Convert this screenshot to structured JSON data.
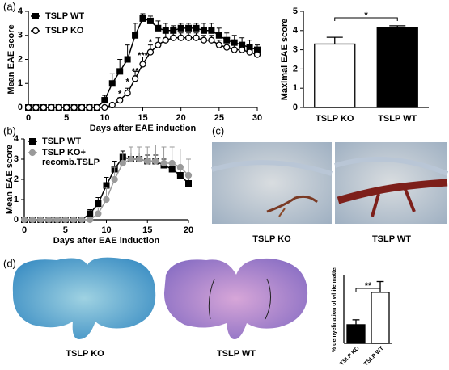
{
  "panel_labels": [
    "(a)",
    "(b)",
    "(c)",
    "(d)"
  ],
  "captions": [
    "TSLP KO",
    "TSLP WT",
    "TSLP KO",
    "TSLP WT"
  ],
  "chart_data": [
    {
      "type": "line",
      "x_label": "Days after EAE induction",
      "y_label": "Mean EAE score",
      "x": [
        0,
        1,
        2,
        3,
        4,
        5,
        6,
        7,
        8,
        9,
        10,
        11,
        12,
        13,
        14,
        15,
        16,
        17,
        18,
        19,
        20,
        21,
        22,
        23,
        24,
        25,
        26,
        27,
        28,
        29,
        30
      ],
      "xlim": [
        0,
        30
      ],
      "xticks": [
        0,
        5,
        10,
        15,
        20,
        25,
        30
      ],
      "ylim": [
        0,
        4
      ],
      "yticks": [
        0,
        1,
        2,
        3,
        4
      ],
      "annotations": [
        "*",
        "*",
        "**",
        "***",
        "*"
      ],
      "series": [
        {
          "name": "TSLP WT",
          "color": "#000000",
          "marker": "square",
          "marker_fill": "#000000",
          "values": [
            0,
            0,
            0,
            0,
            0,
            0,
            0,
            0,
            0,
            0,
            0.3,
            1.0,
            1.5,
            2.0,
            3.0,
            3.7,
            3.6,
            3.3,
            3.2,
            3.2,
            3.3,
            3.3,
            3.3,
            3.2,
            3.2,
            3.0,
            2.8,
            2.7,
            2.6,
            2.5,
            2.4
          ],
          "errors": [
            0,
            0,
            0,
            0,
            0,
            0,
            0,
            0,
            0,
            0,
            0.2,
            0.4,
            0.5,
            0.6,
            0.5,
            0.2,
            0.2,
            0.3,
            0.3,
            0.2,
            0.2,
            0.2,
            0.2,
            0.3,
            0.3,
            0.3,
            0.3,
            0.3,
            0.3,
            0.3,
            0.2
          ]
        },
        {
          "name": "TSLP KO",
          "color": "#000000",
          "marker": "circle",
          "marker_fill": "#ffffff",
          "values": [
            0,
            0,
            0,
            0,
            0,
            0,
            0,
            0,
            0,
            0,
            0,
            0.1,
            0.3,
            0.6,
            1.2,
            1.8,
            2.3,
            2.6,
            2.8,
            2.9,
            2.9,
            2.9,
            2.9,
            2.8,
            2.8,
            2.6,
            2.5,
            2.4,
            2.4,
            2.3,
            2.2
          ],
          "errors": [
            0,
            0,
            0,
            0,
            0,
            0,
            0,
            0,
            0,
            0,
            0,
            0,
            0.1,
            0.2,
            0.3,
            0.3,
            0.3,
            0.3,
            0.3,
            0.2,
            0.2,
            0.2,
            0.2,
            0.2,
            0.2,
            0.2,
            0.2,
            0.2,
            0.2,
            0.2,
            0.2
          ]
        }
      ]
    },
    {
      "type": "bar",
      "y_label": "Maximal EAE score",
      "categories": [
        "TSLP KO",
        "TSLP WT"
      ],
      "values": [
        3.3,
        4.15
      ],
      "errors": [
        0.35,
        0.1
      ],
      "colors": [
        "#ffffff",
        "#000000"
      ],
      "ylim": [
        0,
        5
      ],
      "yticks": [
        0,
        1,
        2,
        3,
        4,
        5
      ],
      "significance": "*"
    },
    {
      "type": "line",
      "x_label": "Days after EAE induction",
      "y_label": "Mean EAE score",
      "x": [
        0,
        1,
        2,
        3,
        4,
        5,
        6,
        7,
        8,
        9,
        10,
        11,
        12,
        13,
        14,
        15,
        16,
        17,
        18,
        19,
        20
      ],
      "xlim": [
        0,
        20
      ],
      "xticks": [
        0,
        5,
        10,
        15,
        20
      ],
      "ylim": [
        0,
        4
      ],
      "yticks": [
        0,
        1,
        2,
        3,
        4
      ],
      "series": [
        {
          "name": "TSLP WT",
          "color": "#000000",
          "marker": "square",
          "marker_fill": "#000000",
          "values": [
            0,
            0,
            0,
            0,
            0,
            0,
            0,
            0,
            0.3,
            0.8,
            1.7,
            2.5,
            3.1,
            3.0,
            3.0,
            2.9,
            2.9,
            2.7,
            2.5,
            2.2,
            1.8
          ],
          "errors": [
            0,
            0,
            0,
            0,
            0,
            0,
            0,
            0,
            0.2,
            0.3,
            0.4,
            0.4,
            0.3,
            0.3,
            0.3,
            0.3,
            0.3,
            0.3,
            0.3,
            0.3,
            0.3
          ]
        },
        {
          "name": "TSLP KO+\nrecomb.TSLP",
          "color": "#9a9a9a",
          "marker": "circle",
          "marker_fill": "#9a9a9a",
          "values": [
            0,
            0,
            0,
            0,
            0,
            0,
            0,
            0,
            0,
            0.3,
            1.0,
            2.0,
            2.8,
            3.0,
            3.0,
            2.9,
            2.9,
            2.8,
            2.8,
            2.6,
            2.2
          ],
          "errors": [
            0,
            0,
            0,
            0,
            0,
            0,
            0,
            0,
            0,
            0.3,
            0.6,
            0.6,
            0.5,
            0.6,
            0.6,
            0.7,
            0.8,
            0.8,
            0.8,
            0.9,
            0.8
          ]
        }
      ]
    },
    {
      "type": "bar",
      "y_label": "% demyelination of white matter",
      "categories": [
        "TSLP KO",
        "TSLP WT"
      ],
      "values": [
        1.9,
        5.2
      ],
      "errors": [
        0.5,
        1.1
      ],
      "colors": [
        "#000000",
        "#ffffff"
      ],
      "ylim": [
        0,
        7
      ],
      "significance": "**"
    }
  ]
}
